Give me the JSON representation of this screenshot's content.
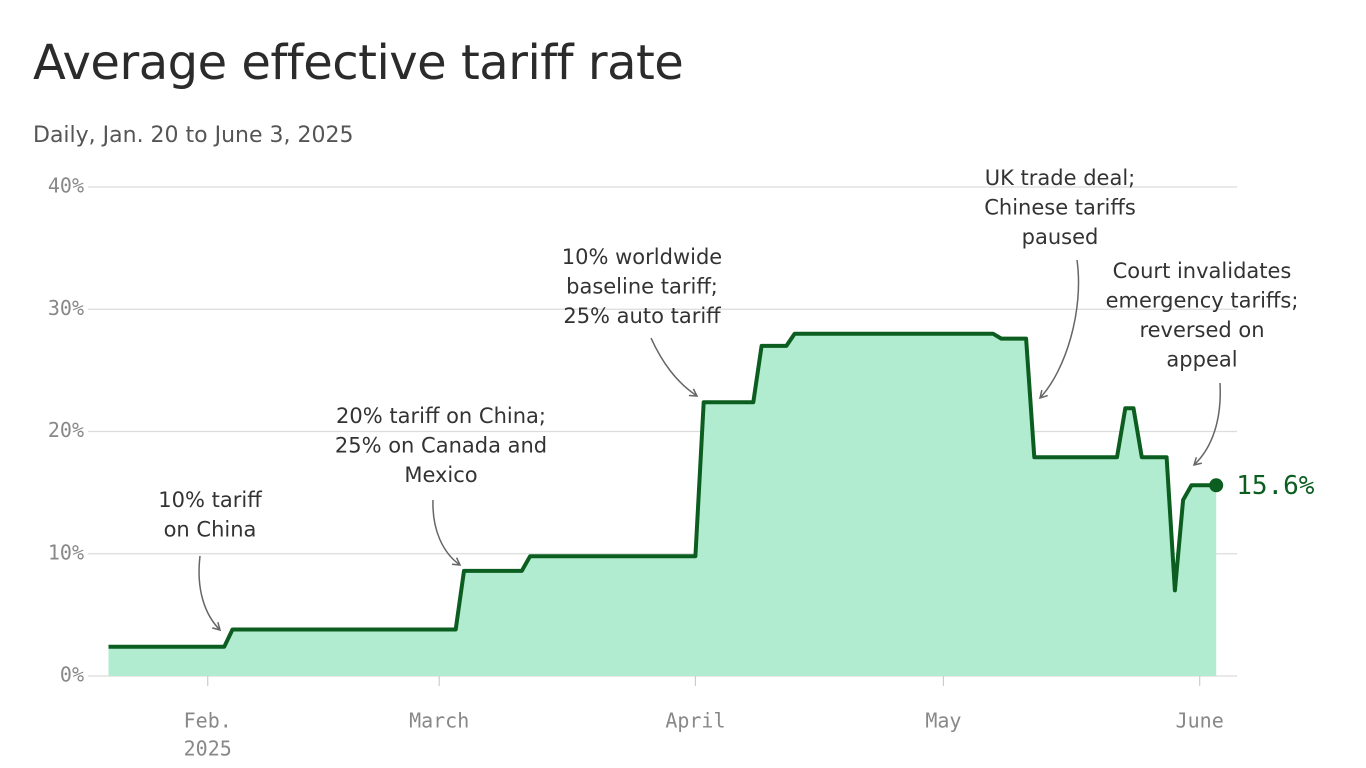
{
  "chart_data": {
    "type": "area-line",
    "title": "Average effective tariff rate",
    "subtitle": "Daily, Jan. 20 to June 3, 2025",
    "x": [
      "2025-01-20",
      "2025-02-03",
      "2025-02-04",
      "2025-03-03",
      "2025-03-04",
      "2025-03-11",
      "2025-03-12",
      "2025-04-01",
      "2025-04-02",
      "2025-04-08",
      "2025-04-09",
      "2025-04-12",
      "2025-04-13",
      "2025-05-07",
      "2025-05-08",
      "2025-05-11",
      "2025-05-12",
      "2025-05-22",
      "2025-05-23",
      "2025-05-24",
      "2025-05-25",
      "2025-05-28",
      "2025-05-29",
      "2025-05-30",
      "2025-05-31",
      "2025-06-03"
    ],
    "values": [
      2.4,
      2.4,
      3.8,
      3.8,
      8.6,
      8.6,
      9.8,
      9.8,
      22.4,
      22.4,
      27.0,
      27.0,
      28.0,
      28.0,
      27.6,
      27.6,
      17.9,
      17.9,
      21.9,
      21.9,
      17.9,
      17.9,
      7.0,
      14.4,
      15.6,
      15.6
    ],
    "value_labels": [
      null,
      null,
      null,
      null,
      null,
      null,
      null,
      null,
      null,
      null,
      null,
      null,
      null,
      null,
      null,
      null,
      null,
      null,
      null,
      null,
      null,
      null,
      null,
      null,
      null,
      "15.6%"
    ],
    "line_color": "#0b5e1f",
    "area_color": "#b2ecd0",
    "xlim": [
      "2025-01-18",
      "2025-06-06"
    ],
    "xticks": [
      {
        "value": "2025-02-01",
        "label": "Feb."
      },
      {
        "value": "2025-03-01",
        "label": "March"
      },
      {
        "value": "2025-04-01",
        "label": "April"
      },
      {
        "value": "2025-05-01",
        "label": "May"
      },
      {
        "value": "2025-06-01",
        "label": "June"
      }
    ],
    "x_year_label": "2025",
    "ylim": [
      0,
      40
    ],
    "yticks": [
      {
        "value": 0,
        "label": "0%"
      },
      {
        "value": 10,
        "label": "10%"
      },
      {
        "value": 20,
        "label": "20%"
      },
      {
        "value": 30,
        "label": "30%"
      },
      {
        "value": 40,
        "label": "40%"
      }
    ],
    "grid": true,
    "annotations": [
      {
        "lines": [
          "10% tariff",
          "on China"
        ]
      },
      {
        "lines": [
          "20% tariff on China;",
          "25% on Canada and",
          "Mexico"
        ]
      },
      {
        "lines": [
          "10% worldwide",
          "baseline tariff;",
          "25% auto tariff"
        ]
      },
      {
        "lines": [
          "UK trade deal;",
          "Chinese tariffs",
          "paused"
        ]
      },
      {
        "lines": [
          "Court invalidates",
          "emergency tariffs;",
          "reversed on",
          "appeal"
        ]
      }
    ]
  }
}
